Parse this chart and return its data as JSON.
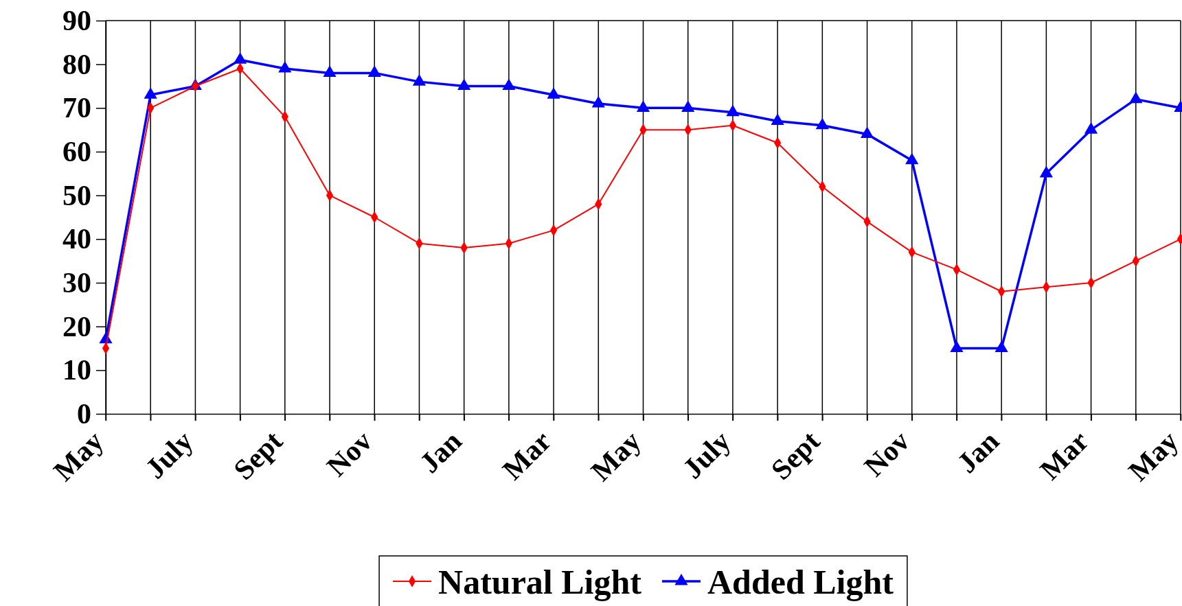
{
  "chart_data": {
    "type": "line",
    "categories": [
      "May",
      null,
      "July",
      null,
      "Sept",
      null,
      "Nov",
      null,
      "Jan",
      null,
      "Mar",
      null,
      "May",
      null,
      "July",
      null,
      "Sept",
      null,
      "Nov",
      null,
      "Jan",
      null,
      "Mar",
      null,
      "May"
    ],
    "series": [
      {
        "name": "Natural Light",
        "color": "#ff0000",
        "marker": "diamond",
        "values": [
          15,
          70,
          75,
          79,
          68,
          50,
          45,
          39,
          38,
          39,
          42,
          48,
          65,
          65,
          66,
          62,
          52,
          44,
          37,
          33,
          28,
          29,
          30,
          35,
          40
        ]
      },
      {
        "name": "Added Light",
        "color": "#0000ff",
        "marker": "triangle",
        "values": [
          17,
          73,
          75,
          81,
          79,
          78,
          78,
          76,
          75,
          75,
          73,
          71,
          70,
          70,
          69,
          67,
          66,
          64,
          58,
          15,
          15,
          55,
          65,
          72,
          70
        ]
      }
    ],
    "ylim": [
      0,
      90
    ],
    "yticks": [
      0,
      10,
      20,
      30,
      40,
      50,
      60,
      70,
      80,
      90
    ],
    "grid": "x",
    "legend": "bottom"
  }
}
